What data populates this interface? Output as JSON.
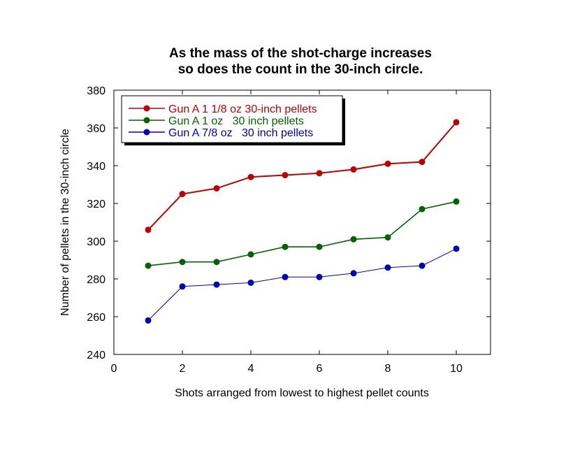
{
  "chart_data": {
    "type": "line",
    "title_lines": [
      "As the mass of the shot-charge increases",
      "so does the count in the 30-inch circle."
    ],
    "xlabel": "Shots arranged from lowest to highest pellet counts",
    "ylabel": "Number of pellets in the 30-inch circle",
    "xlim": [
      0,
      11
    ],
    "ylim": [
      240,
      380
    ],
    "x_ticks": [
      0,
      2,
      4,
      6,
      8,
      10
    ],
    "y_ticks": [
      240,
      260,
      280,
      300,
      320,
      340,
      360,
      380
    ],
    "grid": false,
    "legend_position": "top-left",
    "x": [
      1,
      2,
      3,
      4,
      5,
      6,
      7,
      8,
      9,
      10
    ],
    "series": [
      {
        "name": "Gun A 1 1/8 oz 30-inch pellets",
        "color": "#c00000",
        "values": [
          306,
          325,
          328,
          334,
          335,
          336,
          338,
          341,
          342,
          363
        ]
      },
      {
        "name": "Gun A 1 oz   30 inch pellets",
        "color": "#006400",
        "values": [
          287,
          289,
          289,
          293,
          297,
          297,
          301,
          302,
          317,
          321
        ]
      },
      {
        "name": "Gun A 7/8 oz   30 inch pellets",
        "color": "#0000c0",
        "values": [
          258,
          276,
          277,
          278,
          281,
          281,
          283,
          286,
          287,
          296
        ]
      }
    ]
  }
}
